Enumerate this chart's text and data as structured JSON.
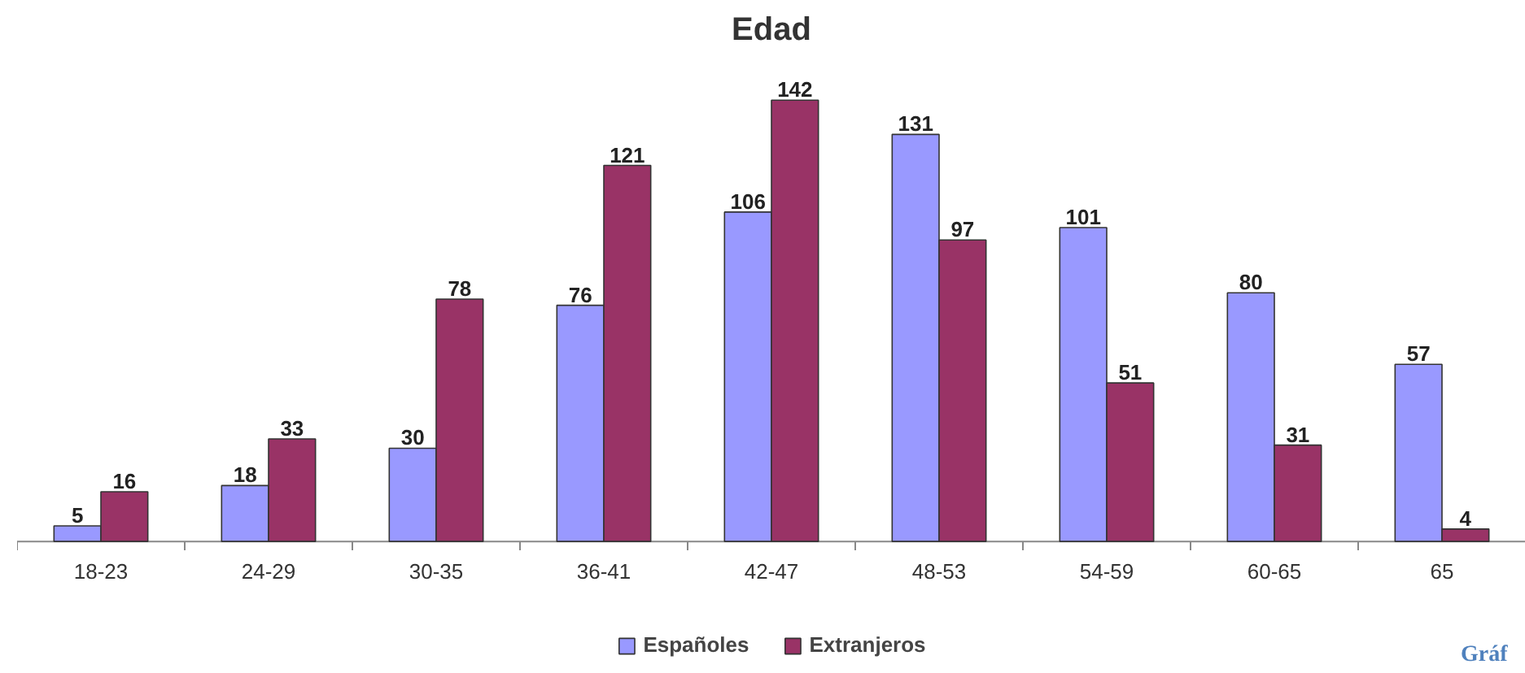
{
  "chart_data": {
    "type": "bar",
    "title": "Edad",
    "categories": [
      "18-23",
      "24-29",
      "30-35",
      "36-41",
      "42-47",
      "48-53",
      "54-59",
      "60-65",
      "65"
    ],
    "series": [
      {
        "name": "Españoles",
        "color": "#9999ff",
        "values": [
          5,
          18,
          30,
          76,
          106,
          131,
          101,
          80,
          57
        ]
      },
      {
        "name": "Extranjeros",
        "color": "#993366",
        "values": [
          16,
          33,
          78,
          121,
          142,
          97,
          51,
          31,
          4
        ]
      }
    ],
    "data_labels": true,
    "legend": "bottom",
    "grid": false,
    "annotations": [
      "Gráf"
    ]
  }
}
